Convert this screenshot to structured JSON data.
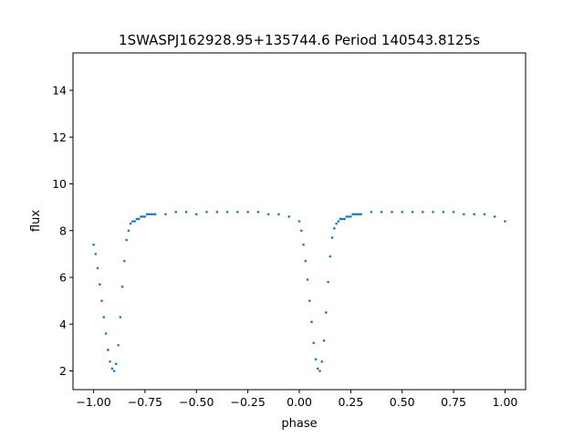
{
  "chart_data": {
    "type": "scatter",
    "title": "1SWASPJ162928.95+135744.6 Period 140543.8125s",
    "xlabel": "phase",
    "ylabel": "flux",
    "xlim": [
      -1.1,
      1.1
    ],
    "ylim": [
      1.2,
      15.6
    ],
    "grid": false,
    "legend": "none",
    "point_color": "#1f77b4",
    "x_ticks": [
      -1.0,
      -0.75,
      -0.5,
      -0.25,
      0.0,
      0.25,
      0.5,
      0.75,
      1.0
    ],
    "x_tick_labels": [
      "−1.00",
      "−0.75",
      "−0.50",
      "−0.25",
      "0.00",
      "0.25",
      "0.50",
      "0.75",
      "1.00"
    ],
    "y_ticks": [
      2,
      4,
      6,
      8,
      10,
      12,
      14
    ],
    "y_tick_labels": [
      "2",
      "4",
      "6",
      "8",
      "10",
      "12",
      "14"
    ],
    "series": [
      {
        "x": [
          -1.0,
          -0.99,
          -0.98,
          -0.97,
          -0.96,
          -0.95,
          -0.94,
          -0.93,
          -0.92,
          -0.91,
          -0.9,
          -0.89,
          -0.88,
          -0.87,
          -0.86,
          -0.85,
          -0.84,
          -0.83,
          -0.82,
          -0.81,
          -0.8,
          -0.79,
          -0.78,
          -0.77,
          -0.76,
          -0.75,
          -0.74,
          -0.73,
          -0.72,
          -0.71,
          -0.7,
          -0.65,
          -0.6,
          -0.55,
          -0.5,
          -0.45,
          -0.4,
          -0.35,
          -0.3,
          -0.25,
          -0.2,
          -0.15,
          -0.1,
          -0.05,
          0.0,
          0.01,
          0.02,
          0.03,
          0.04,
          0.05,
          0.06,
          0.07,
          0.08,
          0.09,
          0.1,
          0.11,
          0.12,
          0.13,
          0.14,
          0.15,
          0.16,
          0.17,
          0.18,
          0.19,
          0.2,
          0.21,
          0.22,
          0.23,
          0.24,
          0.25,
          0.26,
          0.27,
          0.28,
          0.29,
          0.3,
          0.35,
          0.4,
          0.45,
          0.5,
          0.55,
          0.6,
          0.65,
          0.7,
          0.75,
          0.8,
          0.85,
          0.9,
          0.95,
          1.0
        ],
        "y": [
          7.4,
          7.0,
          6.4,
          5.7,
          5.0,
          4.3,
          3.6,
          2.9,
          2.4,
          2.1,
          2.0,
          2.3,
          3.1,
          4.3,
          5.6,
          6.7,
          7.6,
          8.0,
          8.3,
          8.4,
          8.4,
          8.5,
          8.5,
          8.6,
          8.6,
          8.6,
          8.7,
          8.7,
          8.7,
          8.7,
          8.7,
          8.7,
          8.8,
          8.8,
          8.7,
          8.8,
          8.8,
          8.8,
          8.8,
          8.8,
          8.8,
          8.7,
          8.7,
          8.6,
          8.4,
          8.0,
          7.4,
          6.7,
          5.9,
          5.0,
          4.1,
          3.2,
          2.5,
          2.1,
          2.0,
          2.4,
          3.3,
          4.5,
          5.8,
          6.9,
          7.7,
          8.1,
          8.3,
          8.4,
          8.5,
          8.5,
          8.5,
          8.6,
          8.6,
          8.6,
          8.7,
          8.7,
          8.7,
          8.7,
          8.7,
          8.8,
          8.8,
          8.8,
          8.8,
          8.8,
          8.8,
          8.8,
          8.8,
          8.8,
          8.7,
          8.7,
          8.7,
          8.6,
          8.4
        ]
      }
    ]
  }
}
